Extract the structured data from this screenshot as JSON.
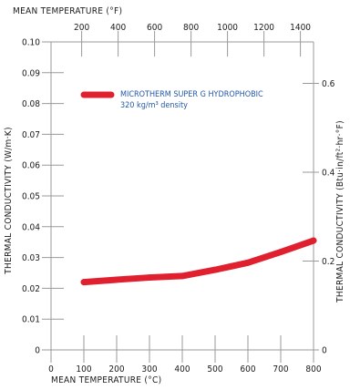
{
  "chart_data": {
    "type": "line",
    "top_axis_title": "MEAN TEMPERATURE (°F)",
    "x_top": {
      "range": [
        32,
        1472
      ],
      "ticks": [
        200,
        400,
        600,
        800,
        1000,
        1200,
        1400
      ],
      "tick_labels": [
        "200",
        "400",
        "600",
        "800",
        "1000",
        "1200",
        "1400"
      ]
    },
    "xlabel": "MEAN TEMPERATURE (°C)",
    "x": {
      "range": [
        0,
        800
      ],
      "ticks": [
        0,
        100,
        200,
        300,
        400,
        500,
        600,
        700,
        800
      ],
      "tick_labels": [
        "0",
        "100",
        "200",
        "300",
        "400",
        "500",
        "600",
        "700",
        "800"
      ]
    },
    "ylabel": "THERMAL CONDUCTIVITY (W/m·K)",
    "y": {
      "range": [
        0,
        0.1
      ],
      "ticks": [
        0,
        0.01,
        0.02,
        0.03,
        0.04,
        0.05,
        0.06,
        0.07,
        0.08,
        0.09,
        0.1
      ],
      "tick_labels": [
        "0",
        "0.01",
        "0.02",
        "0.03",
        "0.04",
        "0.05",
        "0.06",
        "0.07",
        "0.08",
        "0.09",
        "0.10"
      ]
    },
    "ylabel_right": "THERMAL CONDUCTIVITY (Btu·in/ft²·hr·°F)",
    "y_right": {
      "range": [
        0,
        0.6933
      ],
      "ticks": [
        0,
        0.2,
        0.4,
        0.6
      ],
      "tick_labels": [
        "0",
        "0.2",
        "0.4",
        "0.6"
      ]
    },
    "grid": false,
    "legend_position": "top-left",
    "series": [
      {
        "name": "MICROTHERM SUPER G HYDROPHOBIC",
        "name_line2": "320 kg/m³ density",
        "color": "#e0202e",
        "x": [
          100,
          200,
          300,
          400,
          500,
          600,
          700,
          800
        ],
        "y": [
          0.022,
          0.0228,
          0.0235,
          0.024,
          0.026,
          0.0283,
          0.0318,
          0.0355
        ]
      }
    ]
  }
}
